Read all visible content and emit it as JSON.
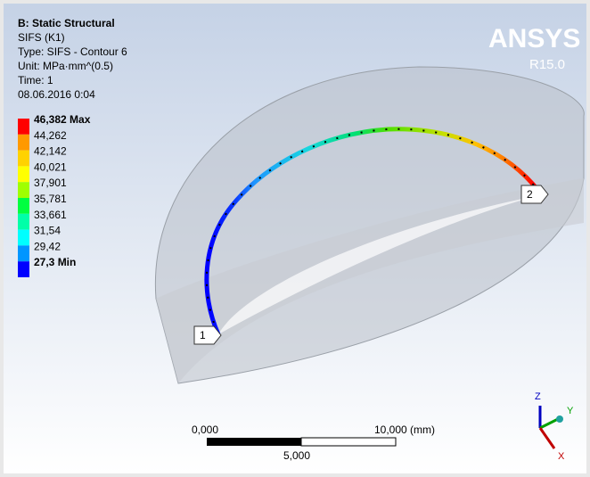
{
  "header": {
    "lines": [
      "B: Static Structural",
      "SIFS (K1)",
      "Type: SIFS - Contour 6",
      "Unit: MPa·mm^(0.5)",
      "Time: 1",
      "08.06.2016 0:04"
    ]
  },
  "legend": {
    "labels": [
      "46,382 Max",
      "44,262",
      "42,142",
      "40,021",
      "37,901",
      "35,781",
      "33,661",
      "31,54",
      "29,42",
      "27,3 Min"
    ]
  },
  "logo": {
    "name": "ANSYS",
    "version": "R15.0"
  },
  "probes": [
    "1",
    "2"
  ],
  "scale_bar": {
    "start": "0,000",
    "end": "10,000 (mm)",
    "middle": "5,000"
  },
  "triad": {
    "z": "Z",
    "y": "Y",
    "x": "X"
  }
}
